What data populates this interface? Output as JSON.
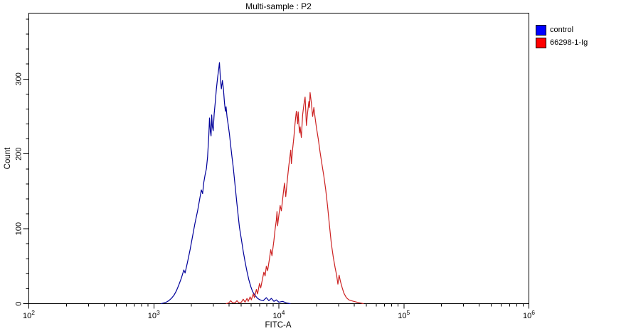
{
  "title": "Multi-sample : P2",
  "axes": {
    "x": {
      "label": "FITC-A",
      "scale": "log10",
      "tick_base": "10",
      "tick_exponents": [
        2,
        3,
        4,
        5,
        6
      ],
      "minor_tick_multipliers": [
        2,
        3,
        4,
        5,
        6,
        7,
        8,
        9
      ]
    },
    "y": {
      "label": "Count",
      "major_ticks": [
        0,
        100,
        200,
        300
      ],
      "minor_step": 20,
      "max": 388
    }
  },
  "legend": {
    "items": [
      {
        "label": "control",
        "color": "#0000ff"
      },
      {
        "label": "66298-1-Ig",
        "color": "#ff0000"
      }
    ]
  },
  "chart_data": {
    "type": "line",
    "subtype": "flow-cytometry-overlay-histogram",
    "title": "Multi-sample : P2",
    "xlabel": "FITC-A",
    "ylabel": "Count",
    "x_scale": "log10",
    "xlim_log10": [
      2,
      6
    ],
    "ylim": [
      0,
      388
    ],
    "grid": false,
    "legend_position": "top-right-outside",
    "series": [
      {
        "name": "control",
        "color": "#00009a",
        "points_log10x_count": [
          [
            3.06,
            0
          ],
          [
            3.08,
            1
          ],
          [
            3.1,
            2
          ],
          [
            3.12,
            4
          ],
          [
            3.14,
            7
          ],
          [
            3.16,
            11
          ],
          [
            3.18,
            17
          ],
          [
            3.2,
            25
          ],
          [
            3.22,
            34
          ],
          [
            3.24,
            45
          ],
          [
            3.25,
            41
          ],
          [
            3.27,
            56
          ],
          [
            3.29,
            72
          ],
          [
            3.31,
            90
          ],
          [
            3.33,
            108
          ],
          [
            3.35,
            124
          ],
          [
            3.365,
            138
          ],
          [
            3.38,
            152
          ],
          [
            3.39,
            147
          ],
          [
            3.4,
            162
          ],
          [
            3.41,
            172
          ],
          [
            3.42,
            180
          ],
          [
            3.43,
            196
          ],
          [
            3.44,
            226
          ],
          [
            3.445,
            248
          ],
          [
            3.452,
            230
          ],
          [
            3.458,
            224
          ],
          [
            3.463,
            252
          ],
          [
            3.468,
            237
          ],
          [
            3.475,
            231
          ],
          [
            3.483,
            254
          ],
          [
            3.492,
            270
          ],
          [
            3.5,
            286
          ],
          [
            3.51,
            302
          ],
          [
            3.518,
            312
          ],
          [
            3.525,
            322
          ],
          [
            3.533,
            299
          ],
          [
            3.54,
            287
          ],
          [
            3.548,
            298
          ],
          [
            3.556,
            288
          ],
          [
            3.565,
            269
          ],
          [
            3.572,
            257
          ],
          [
            3.578,
            263
          ],
          [
            3.586,
            249
          ],
          [
            3.595,
            239
          ],
          [
            3.605,
            226
          ],
          [
            3.615,
            211
          ],
          [
            3.625,
            196
          ],
          [
            3.635,
            182
          ],
          [
            3.645,
            166
          ],
          [
            3.655,
            149
          ],
          [
            3.665,
            133
          ],
          [
            3.675,
            117
          ],
          [
            3.685,
            102
          ],
          [
            3.7,
            86
          ],
          [
            3.715,
            70
          ],
          [
            3.73,
            56
          ],
          [
            3.745,
            43
          ],
          [
            3.76,
            32
          ],
          [
            3.775,
            23
          ],
          [
            3.79,
            16
          ],
          [
            3.81,
            11
          ],
          [
            3.83,
            7
          ],
          [
            3.85,
            5
          ],
          [
            3.875,
            4
          ],
          [
            3.9,
            8
          ],
          [
            3.92,
            4
          ],
          [
            3.94,
            7
          ],
          [
            3.96,
            3
          ],
          [
            3.98,
            5
          ],
          [
            4.0,
            2
          ],
          [
            4.03,
            3
          ],
          [
            4.06,
            1
          ],
          [
            4.09,
            0
          ]
        ]
      },
      {
        "name": "66298-1-Ig",
        "color": "#cc2222",
        "points_log10x_count": [
          [
            3.58,
            0
          ],
          [
            3.6,
            1
          ],
          [
            3.615,
            4
          ],
          [
            3.63,
            1
          ],
          [
            3.65,
            1
          ],
          [
            3.665,
            4
          ],
          [
            3.68,
            1
          ],
          [
            3.7,
            2
          ],
          [
            3.715,
            6
          ],
          [
            3.73,
            2
          ],
          [
            3.745,
            7
          ],
          [
            3.755,
            3
          ],
          [
            3.77,
            9
          ],
          [
            3.78,
            5
          ],
          [
            3.795,
            13
          ],
          [
            3.805,
            8
          ],
          [
            3.82,
            19
          ],
          [
            3.83,
            13
          ],
          [
            3.845,
            27
          ],
          [
            3.855,
            21
          ],
          [
            3.87,
            34
          ],
          [
            3.88,
            42
          ],
          [
            3.89,
            37
          ],
          [
            3.9,
            50
          ],
          [
            3.91,
            44
          ],
          [
            3.925,
            60
          ],
          [
            3.935,
            72
          ],
          [
            3.945,
            64
          ],
          [
            3.96,
            84
          ],
          [
            3.97,
            99
          ],
          [
            3.98,
            112
          ],
          [
            3.985,
            123
          ],
          [
            3.99,
            104
          ],
          [
            4.0,
            118
          ],
          [
            4.01,
            131
          ],
          [
            4.02,
            124
          ],
          [
            4.035,
            147
          ],
          [
            4.045,
            161
          ],
          [
            4.055,
            143
          ],
          [
            4.07,
            169
          ],
          [
            4.08,
            185
          ],
          [
            4.09,
            198
          ],
          [
            4.095,
            205
          ],
          [
            4.1,
            187
          ],
          [
            4.11,
            206
          ],
          [
            4.12,
            222
          ],
          [
            4.13,
            241
          ],
          [
            4.14,
            257
          ],
          [
            4.145,
            250
          ],
          [
            4.15,
            240
          ],
          [
            4.155,
            256
          ],
          [
            4.16,
            240
          ],
          [
            4.165,
            228
          ],
          [
            4.17,
            236
          ],
          [
            4.18,
            222
          ],
          [
            4.19,
            252
          ],
          [
            4.2,
            266
          ],
          [
            4.21,
            276
          ],
          [
            4.215,
            258
          ],
          [
            4.22,
            238
          ],
          [
            4.23,
            255
          ],
          [
            4.24,
            270
          ],
          [
            4.245,
            262
          ],
          [
            4.25,
            282
          ],
          [
            4.26,
            268
          ],
          [
            4.27,
            250
          ],
          [
            4.28,
            262
          ],
          [
            4.29,
            248
          ],
          [
            4.3,
            236
          ],
          [
            4.315,
            220
          ],
          [
            4.33,
            202
          ],
          [
            4.345,
            186
          ],
          [
            4.36,
            170
          ],
          [
            4.375,
            152
          ],
          [
            4.39,
            130
          ],
          [
            4.405,
            104
          ],
          [
            4.42,
            80
          ],
          [
            4.435,
            62
          ],
          [
            4.45,
            48
          ],
          [
            4.462,
            38
          ],
          [
            4.472,
            26
          ],
          [
            4.482,
            38
          ],
          [
            4.492,
            30
          ],
          [
            4.505,
            22
          ],
          [
            4.52,
            14
          ],
          [
            4.54,
            8
          ],
          [
            4.56,
            5
          ],
          [
            4.58,
            4
          ],
          [
            4.6,
            3
          ],
          [
            4.625,
            2
          ],
          [
            4.65,
            1
          ],
          [
            4.675,
            0
          ]
        ]
      }
    ]
  }
}
